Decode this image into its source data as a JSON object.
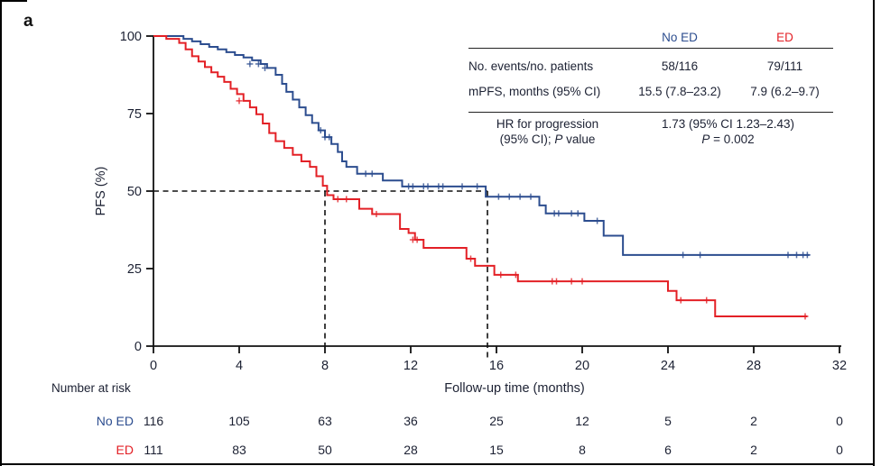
{
  "panel_label": "a",
  "colors": {
    "no_ed": "#2c4d8f",
    "ed": "#e32026",
    "text": "#1c2133",
    "axis": "#111111",
    "dashed": "#111111"
  },
  "axes": {
    "ylabel": "PFS (%)",
    "xlabel": "Follow-up time (months)"
  },
  "inset": {
    "col_headers": [
      "No ED",
      "ED"
    ],
    "rows": [
      {
        "label": "No. events/no. patients",
        "no_ed": "58/116",
        "ed": "79/111"
      },
      {
        "label": "mPFS, months (95% CI)",
        "no_ed": "15.5 (7.8–23.2)",
        "ed": "7.9 (6.2–9.7)"
      }
    ],
    "hr_row": {
      "label_line1": "HR for progression",
      "label_line2_pre": "(95% CI); ",
      "label_line2_p": "P",
      "label_line2_post": " value",
      "value_line1": "1.73 (95% CI 1.23–2.43)",
      "value_line2_p": "P",
      "value_line2_post": " = 0.002"
    }
  },
  "number_at_risk": {
    "title": "Number at risk",
    "rows": [
      {
        "label": "No ED",
        "color_key": "no_ed",
        "counts": [
          116,
          105,
          63,
          36,
          25,
          12,
          5,
          2,
          0
        ]
      },
      {
        "label": "ED",
        "color_key": "ed",
        "counts": [
          111,
          83,
          50,
          28,
          15,
          8,
          6,
          2,
          0
        ]
      }
    ]
  },
  "chart_data": {
    "type": "line",
    "subtype": "kaplan-meier-step",
    "title": "",
    "xlabel": "Follow-up time (months)",
    "ylabel": "PFS (%)",
    "xlim": [
      0,
      32
    ],
    "ylim": [
      0,
      100
    ],
    "xticks": [
      0,
      4,
      8,
      12,
      16,
      20,
      24,
      28,
      32
    ],
    "yticks": [
      0,
      25,
      50,
      75,
      100
    ],
    "grid": false,
    "legend_position": "inset-table-top-right",
    "series": [
      {
        "name": "No ED",
        "color": "#2c4d8f",
        "steps": [
          [
            0,
            100
          ],
          [
            1.4,
            99.1
          ],
          [
            1.8,
            98.3
          ],
          [
            2.2,
            97.4
          ],
          [
            2.6,
            96.5
          ],
          [
            3.0,
            95.7
          ],
          [
            3.4,
            94.8
          ],
          [
            3.8,
            93.9
          ],
          [
            4.2,
            93.1
          ],
          [
            4.6,
            92.2
          ],
          [
            5.0,
            91
          ],
          [
            5.3,
            89.7
          ],
          [
            5.7,
            87.5
          ],
          [
            6.0,
            84.6
          ],
          [
            6.2,
            82
          ],
          [
            6.5,
            79.5
          ],
          [
            6.8,
            77
          ],
          [
            7.1,
            74.5
          ],
          [
            7.4,
            72
          ],
          [
            7.7,
            69.6
          ],
          [
            8.0,
            67.4
          ],
          [
            8.3,
            65.2
          ],
          [
            8.6,
            62.6
          ],
          [
            8.8,
            59.6
          ],
          [
            9.0,
            57.8
          ],
          [
            9.5,
            55.6
          ],
          [
            10.7,
            53.4
          ],
          [
            11.6,
            51.5
          ],
          [
            15.5,
            48.2
          ],
          [
            18.0,
            45.4
          ],
          [
            18.3,
            42.8
          ],
          [
            20.1,
            40.4
          ],
          [
            21.0,
            35.6
          ],
          [
            21.9,
            29.4
          ],
          [
            30.6,
            29.4
          ]
        ],
        "censors": [
          [
            4.5,
            91
          ],
          [
            4.9,
            91
          ],
          [
            5.2,
            89.7
          ],
          [
            7.8,
            69.6
          ],
          [
            8.0,
            67.4
          ],
          [
            8.2,
            67.4
          ],
          [
            9.9,
            55.6
          ],
          [
            10.2,
            55.6
          ],
          [
            11.9,
            51.5
          ],
          [
            12.1,
            51.5
          ],
          [
            12.6,
            51.5
          ],
          [
            12.8,
            51.5
          ],
          [
            13.3,
            51.5
          ],
          [
            13.5,
            51.5
          ],
          [
            14.4,
            51.5
          ],
          [
            15.1,
            51.5
          ],
          [
            16.1,
            48.2
          ],
          [
            16.6,
            48.2
          ],
          [
            17.1,
            48.2
          ],
          [
            17.6,
            48.2
          ],
          [
            18.7,
            42.8
          ],
          [
            18.9,
            42.8
          ],
          [
            19.5,
            42.8
          ],
          [
            19.8,
            42.8
          ],
          [
            20.7,
            40.4
          ],
          [
            24.7,
            29.4
          ],
          [
            25.5,
            29.4
          ],
          [
            29.6,
            29.4
          ],
          [
            30.0,
            29.4
          ],
          [
            30.3,
            29.4
          ],
          [
            30.5,
            29.4
          ]
        ]
      },
      {
        "name": "ED",
        "color": "#e32026",
        "steps": [
          [
            0,
            100
          ],
          [
            0.6,
            99.1
          ],
          [
            1.2,
            97.8
          ],
          [
            1.5,
            95.7
          ],
          [
            1.8,
            93.5
          ],
          [
            2.1,
            91.8
          ],
          [
            2.4,
            90
          ],
          [
            2.7,
            88.3
          ],
          [
            3.0,
            86.9
          ],
          [
            3.3,
            85.2
          ],
          [
            3.6,
            83
          ],
          [
            3.9,
            81.3
          ],
          [
            4.2,
            79.1
          ],
          [
            4.5,
            77
          ],
          [
            4.8,
            74.8
          ],
          [
            5.1,
            71.8
          ],
          [
            5.4,
            68.7
          ],
          [
            5.7,
            66.1
          ],
          [
            6.1,
            63.9
          ],
          [
            6.5,
            61.7
          ],
          [
            6.9,
            59.6
          ],
          [
            7.3,
            57.8
          ],
          [
            7.6,
            54.8
          ],
          [
            7.9,
            51.7
          ],
          [
            8.1,
            48.7
          ],
          [
            8.4,
            47.4
          ],
          [
            9.6,
            44.3
          ],
          [
            10.2,
            42.6
          ],
          [
            11.5,
            37.8
          ],
          [
            11.9,
            36.5
          ],
          [
            12.2,
            34.3
          ],
          [
            12.6,
            31.7
          ],
          [
            14.6,
            28.2
          ],
          [
            15.0,
            25.9
          ],
          [
            15.9,
            23
          ],
          [
            17.0,
            20.9
          ],
          [
            24.0,
            17.8
          ],
          [
            24.4,
            14.8
          ],
          [
            26.2,
            9.6
          ],
          [
            30.5,
            9.6
          ]
        ],
        "censors": [
          [
            4.0,
            79.1
          ],
          [
            8.6,
            47.4
          ],
          [
            9.0,
            47.4
          ],
          [
            10.4,
            42.6
          ],
          [
            12.1,
            34.3
          ],
          [
            12.3,
            34.3
          ],
          [
            14.8,
            28.2
          ],
          [
            16.2,
            23
          ],
          [
            16.9,
            23
          ],
          [
            18.6,
            20.9
          ],
          [
            18.8,
            20.9
          ],
          [
            19.5,
            20.9
          ],
          [
            20.0,
            20.9
          ],
          [
            24.6,
            14.8
          ],
          [
            25.8,
            14.8
          ],
          [
            30.4,
            9.6
          ]
        ]
      }
    ],
    "annotations": {
      "median_reference": {
        "y_percent": 50,
        "x_months": [
          8,
          15.58
        ],
        "style": "dashed-black"
      }
    }
  }
}
